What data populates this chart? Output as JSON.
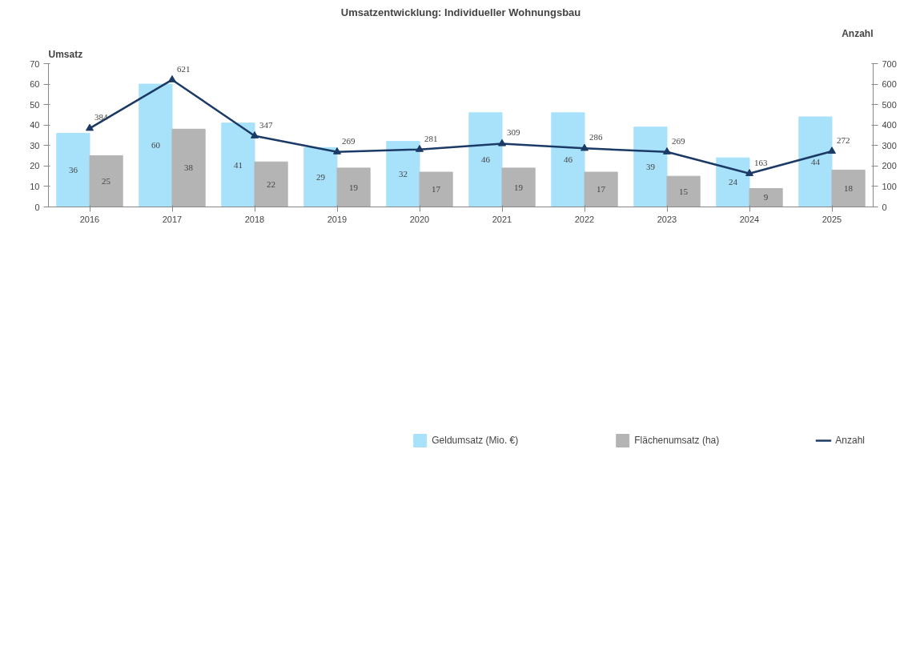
{
  "chart_data": {
    "type": "bar",
    "title": "Umsatzentwicklung: Individueller Wohnungsbau",
    "ylabel": "Umsatz",
    "y2label": "Anzahl",
    "categories": [
      "2016",
      "2017",
      "2018",
      "2019",
      "2020",
      "2021",
      "2022",
      "2023",
      "2024",
      "2025"
    ],
    "series": [
      {
        "name": "Geldumsatz (Mio. €)",
        "color": "#a8e2fa",
        "values": [
          36,
          60,
          41,
          29,
          32,
          46,
          46,
          39,
          24,
          44
        ]
      },
      {
        "name": "Flächenumsatz (ha)",
        "color": "#b4b4b4",
        "values": [
          25,
          38,
          22,
          19,
          17,
          19,
          17,
          15,
          9,
          18
        ]
      },
      {
        "name": "Anzahl",
        "type": "line",
        "axis": "y2",
        "color": "#1b3a66",
        "marker": "triangle",
        "values": [
          384,
          621,
          347,
          269,
          281,
          309,
          286,
          269,
          163,
          272
        ]
      }
    ],
    "ylim": [
      0,
      70
    ],
    "yticks": [
      0,
      10,
      20,
      30,
      40,
      50,
      60,
      70
    ],
    "y2lim": [
      0,
      700
    ],
    "y2ticks": [
      0,
      100,
      200,
      300,
      400,
      500,
      600,
      700
    ],
    "data_labels": true,
    "grid": false,
    "legend": "bottom"
  }
}
